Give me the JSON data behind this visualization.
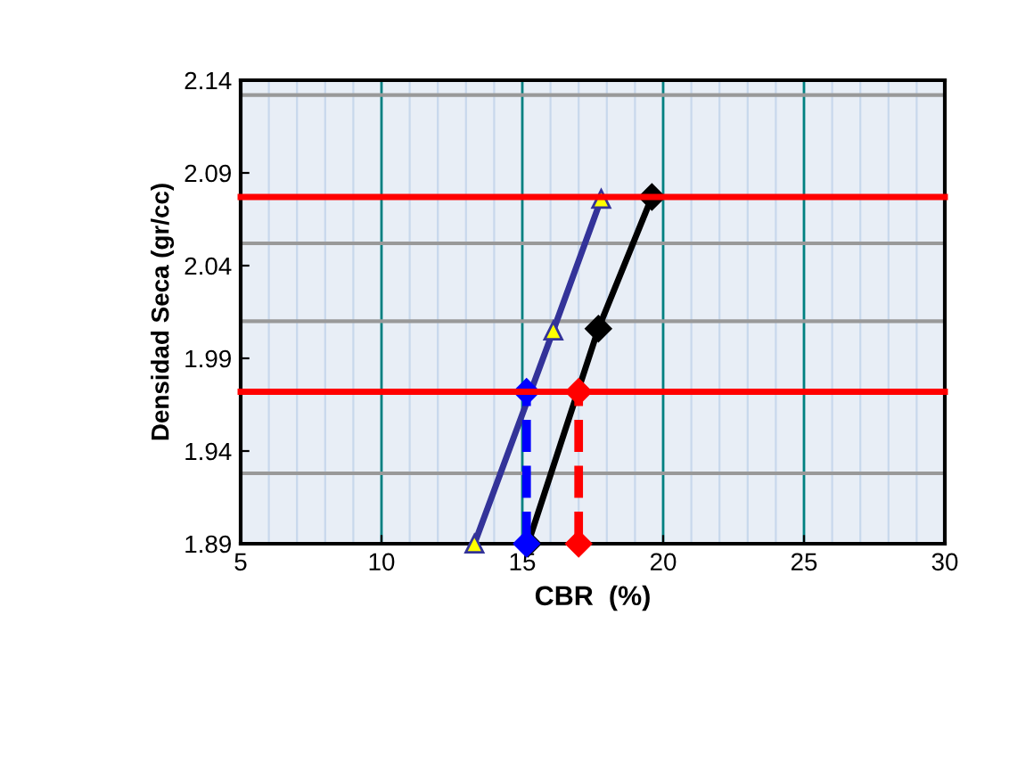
{
  "chart_data": {
    "type": "line",
    "xlabel": "CBR  (%)",
    "ylabel": "Densidad Seca (gr/cc)",
    "xlim": [
      5,
      30
    ],
    "xticks": [
      5,
      10,
      15,
      20,
      25,
      30
    ],
    "ylim": [
      1.89,
      2.14
    ],
    "yticks": [
      1.89,
      1.94,
      1.99,
      2.04,
      2.09,
      2.14
    ],
    "grid": "x",
    "line_style": "solid",
    "series": [
      {
        "color": "#333399",
        "marker": "triangle",
        "x": [
          13.3,
          16.1,
          17.8
        ],
        "values": [
          1.89,
          2.005,
          2.076
        ]
      },
      {
        "color": "#000000",
        "marker": "diamond",
        "x": [
          15.2,
          17.7,
          19.6
        ],
        "values": [
          1.89,
          2.006,
          2.077
        ]
      },
      {
        "color": "#ff0000",
        "marker": "none",
        "x": [
          5,
          30
        ],
        "values": [
          2.077,
          2.077
        ]
      },
      {
        "color": "#0000ff",
        "marker": "diamond",
        "line_style": "dashed",
        "x": [
          15.15,
          15.15
        ],
        "values": [
          1.89,
          1.972
        ]
      },
      {
        "color": "#ff0000",
        "marker": "diamond",
        "line_style": "dashed",
        "x": [
          17.0,
          17.0
        ],
        "values": [
          1.89,
          1.972
        ]
      },
      {
        "color": "#ff0000",
        "marker": "none",
        "x": [
          5,
          30
        ],
        "values": [
          1.972,
          1.972
        ]
      }
    ],
    "ref_lines": [
      {
        "axis": "y",
        "value": 2.132,
        "color": "#999999"
      },
      {
        "axis": "y",
        "value": 2.052,
        "color": "#999999"
      },
      {
        "axis": "y",
        "value": 2.01,
        "color": "#999999"
      },
      {
        "axis": "y",
        "value": 1.928,
        "color": "#999999"
      }
    ]
  }
}
